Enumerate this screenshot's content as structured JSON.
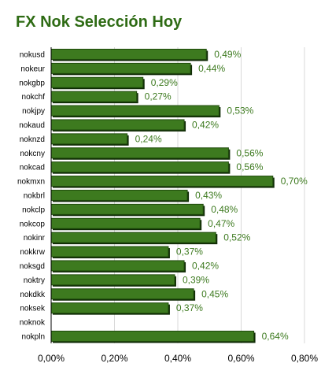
{
  "chart_data": {
    "type": "bar",
    "orientation": "horizontal",
    "title": "FX Nok Selección Hoy",
    "categories": [
      "nokusd",
      "nokeur",
      "nokgbp",
      "nokchf",
      "nokjpy",
      "nokaud",
      "noknzd",
      "nokcny",
      "nokcad",
      "nokmxn",
      "nokbrl",
      "nokclp",
      "nokcop",
      "nokinr",
      "nokkrw",
      "noksgd",
      "noktry",
      "nokdkk",
      "noksek",
      "noknok",
      "nokpln"
    ],
    "values": [
      0.49,
      0.44,
      0.29,
      0.27,
      0.53,
      0.42,
      0.24,
      0.56,
      0.56,
      0.7,
      0.43,
      0.48,
      0.47,
      0.52,
      0.37,
      0.42,
      0.39,
      0.45,
      0.37,
      0,
      0.64
    ],
    "data_labels": [
      "0,49%",
      "0,44%",
      "0,29%",
      "0,27%",
      "0,53%",
      "0,42%",
      "0,24%",
      "0,56%",
      "0,56%",
      "0,70%",
      "0,43%",
      "0,48%",
      "0,47%",
      "0,52%",
      "0,37%",
      "0,42%",
      "0,39%",
      "0,45%",
      "0,37%",
      "",
      "0,64%"
    ],
    "x_ticks": [
      "0,00%",
      "0,20%",
      "0,40%",
      "0,60%",
      "0,80%"
    ],
    "xlim": [
      0,
      0.8
    ],
    "grid": true,
    "colors": {
      "bar": "#3d7a1f",
      "bar_edge": "#1f4a0c",
      "bar_shadow": "#0f2a05",
      "title": "#2e6b14",
      "label": "#3d7a1f",
      "grid": "#d9d9d9"
    }
  }
}
